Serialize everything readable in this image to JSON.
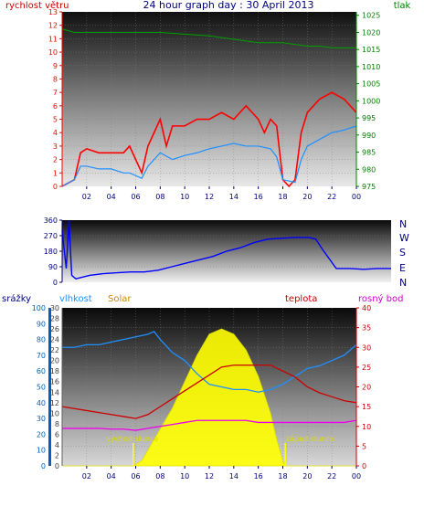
{
  "header": {
    "left_label": "rychlost větru",
    "title": "24 hour graph day : 30 April 2013",
    "right_label": "tlak"
  },
  "colors": {
    "wind": "#ff0000",
    "gust_fill": "#ff0000",
    "wind_avg": "#1e90ff",
    "pressure": "#00a000",
    "direction": "#0000ff",
    "humidity": "#1e90ff",
    "solar": "#ffff00",
    "temperature": "#cc0000",
    "dewpoint": "#ee00ee",
    "rain": "#0070c0",
    "left_axis_red": "#ff0000",
    "right_axis_green": "#008000",
    "axis_blue": "#0060c0",
    "axis_purple": "#cc00cc",
    "axis_orange": "#cc8800",
    "nav_blue": "#000080"
  },
  "x_ticks": [
    "02",
    "04",
    "06",
    "08",
    "10",
    "12",
    "14",
    "16",
    "18",
    "20",
    "22",
    "00"
  ],
  "panel1": {
    "y_left_ticks": [
      "0",
      "1",
      "2",
      "3",
      "4",
      "5",
      "6",
      "7",
      "8",
      "9",
      "10",
      "11",
      "12",
      "13"
    ],
    "y_right_ticks": [
      "975",
      "980",
      "985",
      "990",
      "995",
      "1000",
      "1005",
      "1010",
      "1015",
      "1020",
      "1025"
    ]
  },
  "panel2": {
    "y_ticks": [
      "0",
      "90",
      "180",
      "270",
      "360"
    ],
    "compass": [
      "N",
      "W",
      "S",
      "E",
      "N"
    ]
  },
  "panel3": {
    "labels": {
      "rain": "srážky",
      "humidity": "vlhkost",
      "solar": "Solar",
      "temperature": "teplota",
      "dewpoint": "rosný bod"
    },
    "y_rain_ticks": [
      "0",
      "10",
      "20",
      "30",
      "40",
      "50",
      "60",
      "70",
      "80",
      "90",
      "100"
    ],
    "y_hum_ticks": [
      "0",
      "2",
      "4",
      "6",
      "8",
      "10",
      "12",
      "14",
      "16",
      "18",
      "20",
      "22",
      "24",
      "26",
      "28",
      "30"
    ],
    "y_temp_ticks": [
      "0",
      "5",
      "10",
      "15",
      "20",
      "25",
      "30",
      "35",
      "40"
    ],
    "sunrise_label": "východ slunce",
    "sunset_label": "západ slunce"
  },
  "chart_data": [
    {
      "type": "line",
      "title": "24 hour graph day : 30 April 2013",
      "x_unit": "hour",
      "xlim": [
        0,
        24
      ],
      "series": [
        {
          "name": "rychlost větru",
          "axis": "left",
          "ylim": [
            0,
            13
          ],
          "x": [
            0,
            1,
            1.5,
            2,
            3,
            3.5,
            4,
            5,
            5.5,
            6,
            6.5,
            7,
            7.5,
            8,
            8.5,
            9,
            10,
            11,
            12,
            13,
            14,
            15,
            16,
            16.5,
            17,
            17.5,
            18,
            18.5,
            19,
            19.5,
            20,
            20.5,
            21,
            22,
            23,
            23.5,
            24
          ],
          "values": [
            0,
            0.5,
            2.5,
            2.8,
            2.5,
            2.5,
            2.5,
            2.5,
            3,
            2,
            1,
            3,
            4,
            5,
            3,
            4.5,
            4.5,
            5,
            5,
            5.5,
            5,
            6,
            5,
            4,
            5,
            4.5,
            0.5,
            0,
            0.5,
            4,
            5.5,
            6,
            6.5,
            7,
            6.5,
            6,
            5.5
          ]
        },
        {
          "name": "",
          "axis": "left",
          "ylim": [
            0,
            13
          ],
          "x": [
            0,
            1,
            1.5,
            2,
            3,
            4,
            5,
            5.5,
            6,
            6.5,
            7,
            7.5,
            8,
            9,
            10,
            11,
            12,
            13,
            14,
            15,
            16,
            17,
            17.5,
            18,
            19,
            19.5,
            20,
            21,
            22,
            23,
            24
          ],
          "values": [
            0,
            0.5,
            1.5,
            1.5,
            1.3,
            1.3,
            1,
            1,
            0.8,
            0.6,
            1.5,
            2,
            2.5,
            2,
            2.3,
            2.5,
            2.8,
            3,
            3.2,
            3,
            3,
            2.8,
            2.2,
            0.5,
            0.3,
            2,
            3,
            3.5,
            4,
            4.2,
            4.5
          ]
        },
        {
          "name": "tlak",
          "axis": "right",
          "ylim": [
            975,
            1026
          ],
          "x": [
            0,
            1,
            2,
            4,
            6,
            7,
            8,
            10,
            12,
            14,
            16,
            17,
            18,
            19,
            20,
            21,
            22,
            23,
            24
          ],
          "values": [
            1021,
            1020,
            1020,
            1020,
            1020,
            1020,
            1020,
            1019.5,
            1019,
            1018,
            1017,
            1017,
            1017,
            1016.5,
            1016,
            1016,
            1015.5,
            1015.5,
            1015.5
          ]
        }
      ],
      "ylabel_left": "rychlost větru",
      "ylabel_right": "tlak"
    },
    {
      "type": "line",
      "xlim": [
        0,
        24
      ],
      "ylim": [
        0,
        360
      ],
      "series": [
        {
          "name": "",
          "x": [
            0,
            0.3,
            0.5,
            0.7,
            1,
            1.5,
            2,
            3,
            4,
            5,
            6,
            7,
            8,
            9,
            10,
            11,
            12,
            13,
            14,
            15,
            16,
            17,
            18,
            18.5,
            19,
            20,
            21,
            22,
            23,
            24
          ],
          "values": [
            300,
            80,
            360,
            40,
            20,
            30,
            40,
            50,
            55,
            60,
            60,
            70,
            90,
            110,
            130,
            150,
            180,
            200,
            230,
            250,
            255,
            260,
            260,
            250,
            190,
            80,
            80,
            75,
            80,
            80
          ]
        }
      ],
      "y_tick_labels": [
        "0",
        "90",
        "180",
        "270",
        "360"
      ]
    },
    {
      "type": "area",
      "xlim": [
        0,
        24
      ],
      "series": [
        {
          "name": "srážky",
          "axis": "rain",
          "ylim": [
            0,
            100
          ],
          "x": [],
          "values": []
        },
        {
          "name": "vlhkost",
          "axis": "humidity",
          "ylim": [
            0,
            30
          ],
          "x": [
            0,
            1,
            2,
            3,
            4,
            5,
            6,
            7,
            7.5,
            8,
            9,
            10,
            11,
            12,
            13,
            14,
            15,
            16,
            17,
            18,
            19,
            20,
            21,
            22,
            23,
            24
          ],
          "values": [
            22.5,
            22.5,
            23,
            23,
            23.5,
            24,
            24.5,
            25,
            25.5,
            24,
            21.5,
            20,
            17.5,
            15.5,
            15,
            14.5,
            14.5,
            14,
            14.5,
            15.5,
            17,
            18.5,
            19,
            20,
            21,
            23
          ]
        },
        {
          "name": "Solar",
          "axis": "solar",
          "ylim": [
            0,
            30
          ],
          "x": [
            0,
            5.8,
            6.5,
            7,
            8,
            9,
            10,
            11,
            12,
            13,
            14,
            15,
            16,
            17,
            17.5,
            18,
            18.2,
            24
          ],
          "values": [
            0,
            0,
            1,
            3,
            7,
            11,
            16,
            21,
            25,
            26,
            25,
            22,
            17,
            10,
            5,
            1,
            0,
            0
          ]
        },
        {
          "name": "teplota",
          "axis": "temp",
          "ylim": [
            0,
            40
          ],
          "x": [
            0,
            1,
            2,
            3,
            4,
            5,
            6,
            7,
            8,
            9,
            10,
            11,
            12,
            13,
            14,
            15,
            16,
            17,
            18,
            19,
            20,
            21,
            22,
            23,
            24
          ],
          "values": [
            15,
            14.5,
            14,
            13.5,
            13,
            12.5,
            12,
            13,
            15,
            17,
            19,
            21,
            23,
            25,
            25.5,
            25.5,
            25.5,
            25.5,
            24,
            22.5,
            20,
            18.5,
            17.5,
            16.5,
            16
          ]
        },
        {
          "name": "rosný bod",
          "axis": "temp",
          "ylim": [
            0,
            40
          ],
          "x": [
            0,
            1,
            2,
            3,
            4,
            5,
            6,
            7,
            8,
            9,
            10,
            11,
            12,
            13,
            14,
            15,
            16,
            17,
            18,
            19,
            20,
            21,
            22,
            23,
            24
          ],
          "values": [
            9.5,
            9.5,
            9.5,
            9.5,
            9.3,
            9.3,
            9,
            9.5,
            10,
            10.5,
            11,
            11.5,
            11.5,
            11.5,
            11.5,
            11.5,
            11,
            11,
            11,
            11,
            11,
            11,
            11,
            11,
            11.5
          ]
        }
      ],
      "annotations": [
        "východ slunce",
        "západ slunce"
      ]
    }
  ]
}
